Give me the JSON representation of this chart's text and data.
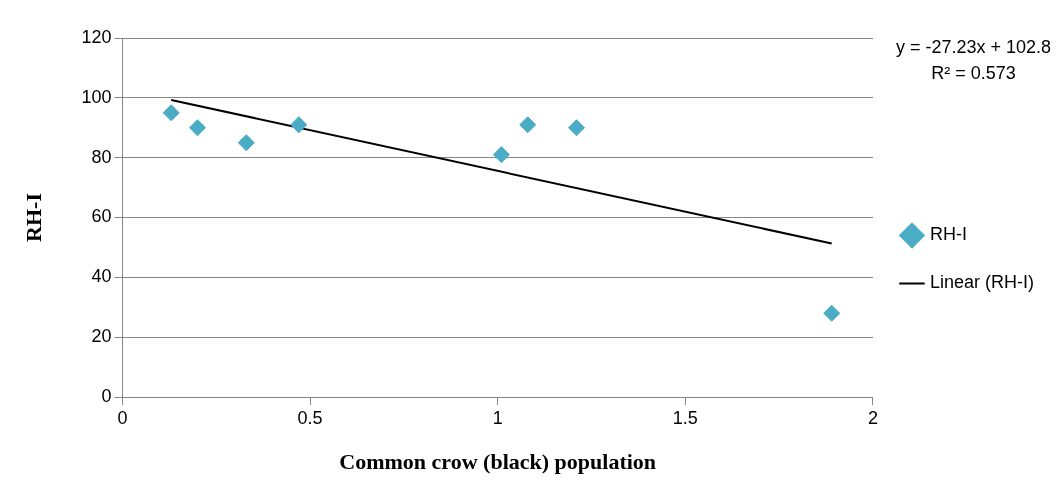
{
  "chart_data": {
    "type": "scatter",
    "xlabel": "Common crow (black) population",
    "ylabel": "RH-I",
    "xlim": [
      0,
      2
    ],
    "xticks": [
      0,
      0.5,
      1,
      1.5,
      2
    ],
    "ylim": [
      0,
      120
    ],
    "yticks": [
      0,
      20,
      40,
      60,
      80,
      100,
      120
    ],
    "grid": "y",
    "legend": "right",
    "annotations": [
      "y = -27.23x + 102.8",
      "R² = 0.573"
    ],
    "series": [
      {
        "name": "RH-I",
        "type": "scatter",
        "marker": "diamond",
        "color": "#4bacc6",
        "x": [
          0.13,
          0.2,
          0.33,
          0.47,
          1.01,
          1.08,
          1.21,
          1.89
        ],
        "values": [
          95,
          90,
          85,
          91,
          81,
          91,
          90,
          28
        ]
      },
      {
        "name": "Linear (RH-I)",
        "type": "line",
        "marker": "none",
        "color": "#000000",
        "x": [
          0.13,
          1.89
        ],
        "values": [
          99.3,
          51.3
        ]
      }
    ]
  }
}
